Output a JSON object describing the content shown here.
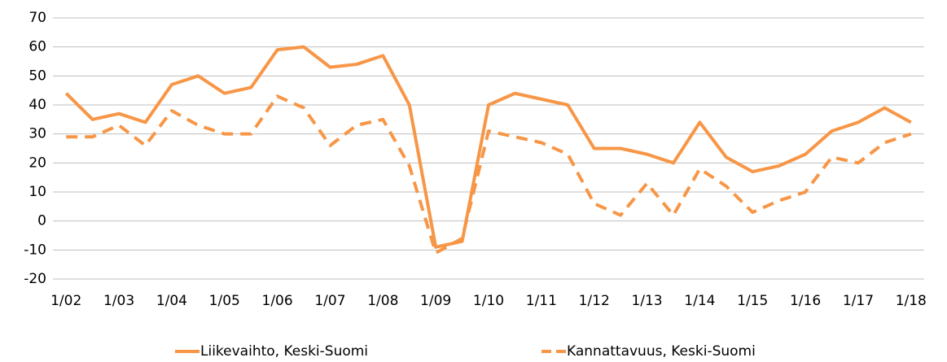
{
  "chart_data": {
    "type": "line",
    "categories": [
      "1/02",
      null,
      "1/03",
      null,
      "1/04",
      null,
      "1/05",
      null,
      "1/06",
      null,
      "1/07",
      null,
      "1/08",
      null,
      "1/09",
      null,
      "1/10",
      null,
      "1/11",
      null,
      "1/12",
      null,
      "1/13",
      null,
      "1/14",
      null,
      "1/15",
      null,
      "1/16",
      null,
      "1/17",
      null,
      "1/18"
    ],
    "series": [
      {
        "name": "Liikevaihto, Keski-Suomi",
        "color": "#f79646",
        "dash": false,
        "values": [
          44,
          35,
          37,
          34,
          47,
          50,
          44,
          46,
          59,
          60,
          53,
          54,
          57,
          40,
          -9,
          -7,
          40,
          44,
          42,
          40,
          25,
          25,
          23,
          20,
          34,
          22,
          17,
          19,
          23,
          31,
          34,
          39,
          34
        ]
      },
      {
        "name": "Kannattavuus, Keski-Suomi",
        "color": "#f79646",
        "dash": true,
        "values": [
          29,
          29,
          33,
          26,
          38,
          33,
          30,
          30,
          43,
          39,
          26,
          33,
          35,
          19,
          -11,
          -6,
          31,
          29,
          27,
          23,
          6,
          2,
          13,
          2,
          18,
          12,
          3,
          7,
          10,
          22,
          20,
          27,
          30
        ]
      }
    ],
    "ylim": [
      -20,
      70
    ],
    "yticks": [
      -20,
      -10,
      0,
      10,
      20,
      30,
      40,
      50,
      60,
      70
    ],
    "grid": true,
    "legend": "bottom"
  }
}
